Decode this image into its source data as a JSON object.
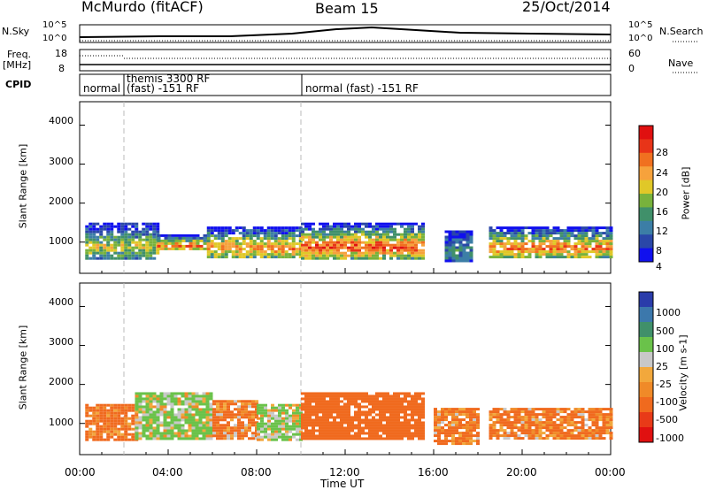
{
  "header": {
    "title": "McMurdo (fitACF)",
    "beam": "Beam 15",
    "date": "25/Oct/2014"
  },
  "strip": {
    "nsky_label": "N.Sky",
    "nsky_top": "10^5",
    "nsky_bottom": "10^0",
    "nsky_right_top": "10^5",
    "nsky_right_bottom": "10^0",
    "nsearch_label": "N.Search",
    "freq_label_1": "Freq.",
    "freq_label_2": "[MHz]",
    "freq_top": "18",
    "freq_bottom": "8",
    "nave_label": "Nave",
    "nave_top": "60",
    "nave_bottom": "0",
    "cpid_label": "CPID",
    "cpid_segments": [
      {
        "text": "normal"
      },
      {
        "text": "themis 3300 RF"
      },
      {
        "text": "(fast) -151 RF"
      },
      {
        "text": "normal (fast) -151 RF"
      }
    ]
  },
  "chart_data": [
    {
      "type": "heatmap",
      "title": "",
      "xlabel": "",
      "ylabel": "Slant Range [km]",
      "ylim": [
        200,
        4600
      ],
      "yticks": [
        "1000",
        "2000",
        "3000",
        "4000"
      ],
      "xlim": [
        "00:00",
        "24:00"
      ],
      "colorbar_label": "Power [dB]",
      "colorbar_ticks": [
        "4",
        "8",
        "12",
        "16",
        "20",
        "24",
        "28"
      ],
      "colorbar_colors": [
        "#1010ee",
        "#2a47a8",
        "#3c7ea6",
        "#40906a",
        "#78b23c",
        "#e0c828",
        "#f6a23c",
        "#f07020",
        "#e83418",
        "#e01010"
      ],
      "regions": [
        {
          "from": "00:15",
          "to": "03:30",
          "range_km": [
            600,
            1500
          ],
          "value": 16
        },
        {
          "from": "03:30",
          "to": "05:45",
          "range_km": [
            800,
            1200
          ],
          "value": 24
        },
        {
          "from": "05:45",
          "to": "10:00",
          "range_km": [
            600,
            1400
          ],
          "value": 22
        },
        {
          "from": "10:00",
          "to": "15:30",
          "range_km": [
            600,
            1500
          ],
          "value": 26
        },
        {
          "from": "16:30",
          "to": "17:45",
          "range_km": [
            500,
            1300
          ],
          "value": 8
        },
        {
          "from": "18:30",
          "to": "24:00",
          "range_km": [
            600,
            1400
          ],
          "value": 24
        }
      ]
    },
    {
      "type": "heatmap",
      "title": "",
      "xlabel": "Time UT",
      "ylabel": "Slant Range [km]",
      "ylim": [
        200,
        4600
      ],
      "yticks": [
        "1000",
        "2000",
        "3000",
        "4000"
      ],
      "xlim": [
        "00:00",
        "24:00"
      ],
      "xticks": [
        "00:00",
        "04:00",
        "08:00",
        "12:00",
        "16:00",
        "20:00",
        "00:00"
      ],
      "colorbar_label": "Velocity [m s-1]",
      "colorbar_ticks": [
        "1000",
        "500",
        "100",
        "25",
        "-25",
        "-100",
        "-500",
        "-1000"
      ],
      "colorbar_colors": [
        "#2a3caa",
        "#3c78ac",
        "#40906a",
        "#6ac24a",
        "#c8c8c8",
        "#f2a83c",
        "#f08a28",
        "#f06a1e",
        "#e83a18",
        "#e01010"
      ],
      "regions": [
        {
          "from": "00:15",
          "to": "02:30",
          "range_km": [
            600,
            1500
          ],
          "value": -200
        },
        {
          "from": "02:30",
          "to": "06:00",
          "range_km": [
            600,
            1800
          ],
          "value": 150
        },
        {
          "from": "06:00",
          "to": "08:00",
          "range_km": [
            600,
            1600
          ],
          "value": -150
        },
        {
          "from": "08:00",
          "to": "10:00",
          "range_km": [
            600,
            1500
          ],
          "value": 120
        },
        {
          "from": "10:00",
          "to": "15:30",
          "range_km": [
            600,
            1800
          ],
          "value": -300
        },
        {
          "from": "16:00",
          "to": "18:00",
          "range_km": [
            500,
            1400
          ],
          "value": -150
        },
        {
          "from": "18:30",
          "to": "24:00",
          "range_km": [
            600,
            1400
          ],
          "value": -150
        }
      ]
    }
  ]
}
